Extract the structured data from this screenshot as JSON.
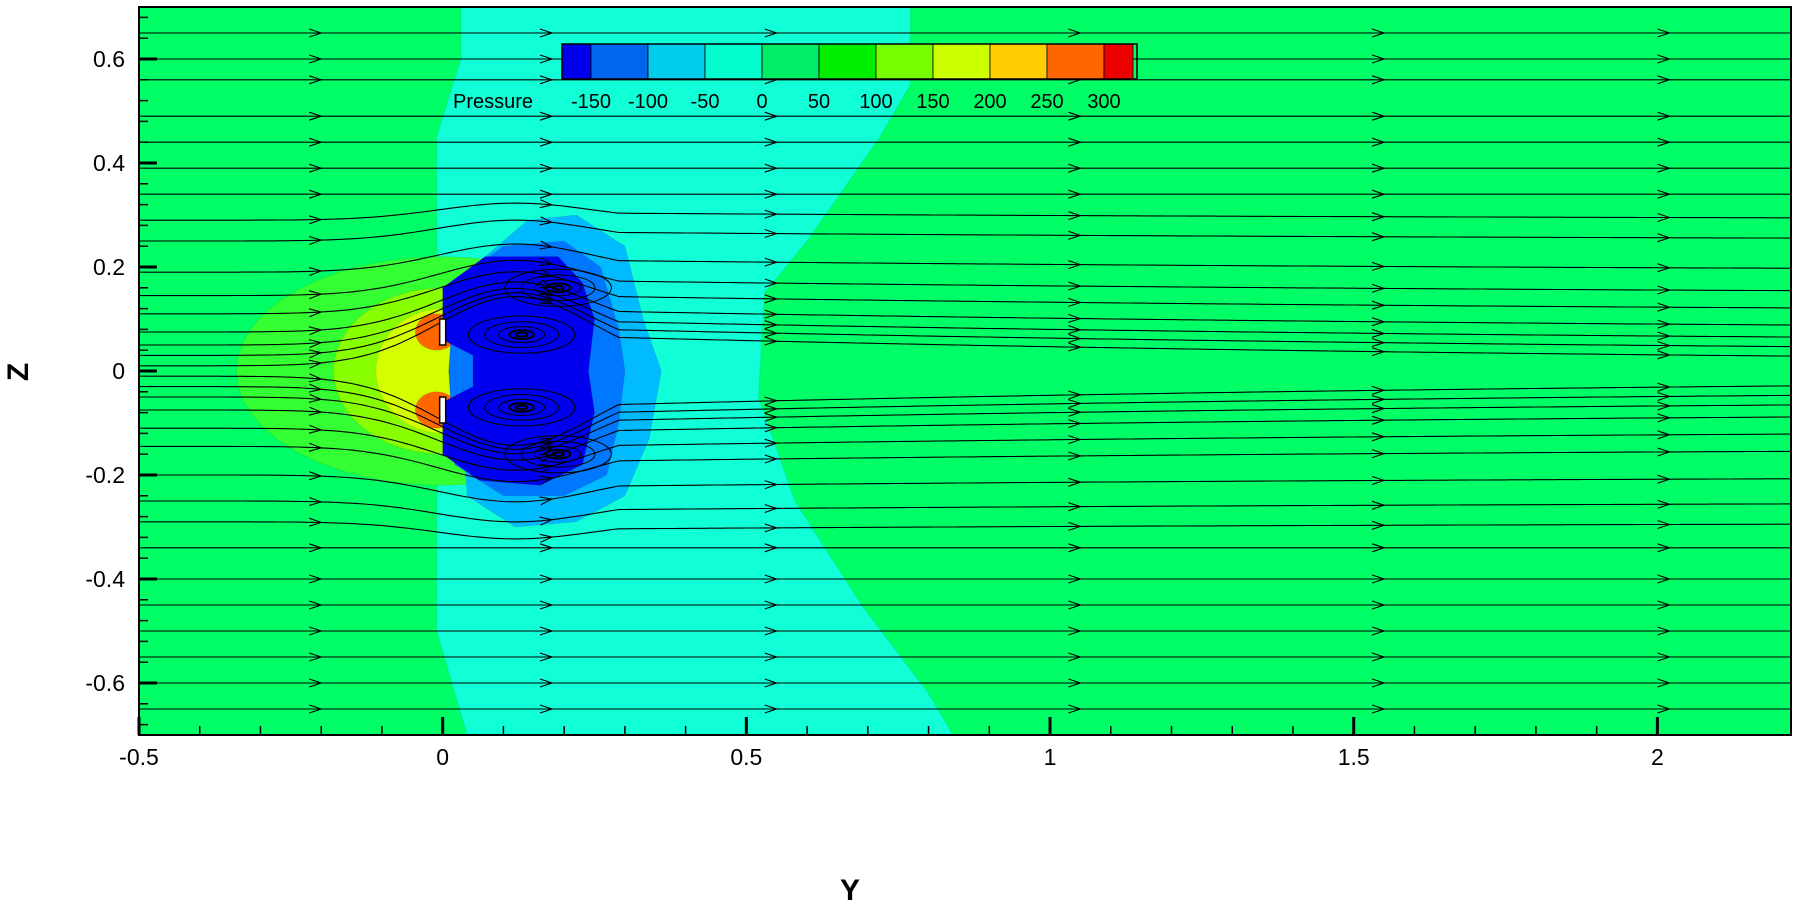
{
  "chart_data": {
    "type": "contour",
    "xlabel": "Y",
    "ylabel": "Z",
    "xlim": [
      -0.5,
      2.22
    ],
    "ylim": [
      -0.7,
      0.7
    ],
    "x_ticks": [
      -0.5,
      0,
      0.5,
      1,
      1.5,
      2
    ],
    "x_tick_labels": [
      "-0.5",
      "0",
      "0.5",
      "1",
      "1.5",
      "2"
    ],
    "y_ticks": [
      0.6,
      0.4,
      0.2,
      0,
      -0.2,
      -0.4,
      -0.6
    ],
    "y_tick_labels": [
      "0.6",
      "0.4",
      "0.2",
      "0",
      "-0.2",
      "-0.4",
      "-0.6"
    ],
    "grid": false,
    "legend": {
      "title": "Pressure",
      "placement": "top-center",
      "levels": [
        -150,
        -100,
        -50,
        0,
        50,
        100,
        150,
        200,
        250,
        300
      ],
      "level_labels": [
        "-150",
        "-100",
        "-50",
        "0",
        "50",
        "100",
        "150",
        "200",
        "250",
        "300"
      ],
      "colors": [
        "#0000ee",
        "#0066ee",
        "#00ccee",
        "#00ffcc",
        "#00ee66",
        "#00ee00",
        "#77ff00",
        "#ccff00",
        "#ffcc00",
        "#ff6600",
        "#ee0000"
      ]
    },
    "background_color": "#00ff66",
    "regions": [
      {
        "name": "wake-band",
        "level": "0 to -50",
        "color": "#11ffd6"
      },
      {
        "name": "upstream-high-outer",
        "level": "50 to 100",
        "color": "#33ff33"
      },
      {
        "name": "upstream-high-mid",
        "level": "100 to 150",
        "color": "#88ff00"
      },
      {
        "name": "upstream-high-inner",
        "level": "150 to 200",
        "color": "#d4ff00"
      },
      {
        "name": "stagnation-upper",
        "level": "250 to 300",
        "color": "#ff6600"
      },
      {
        "name": "stagnation-lower",
        "level": "250 to 300",
        "color": "#ff6600"
      },
      {
        "name": "low-pressure-outer",
        "level": "-50 to -100",
        "color": "#00bbff"
      },
      {
        "name": "low-pressure-mid",
        "level": "-100 to -150",
        "color": "#0077ff"
      },
      {
        "name": "low-pressure-core",
        "level": "< -150",
        "color": "#0000ee"
      }
    ],
    "body": {
      "name": "plate",
      "y": 0,
      "z_range": [
        -0.1,
        0.1
      ],
      "gap": [
        -0.05,
        0.05
      ]
    },
    "vortices": [
      {
        "name": "vortex-upper-outer",
        "y": 0.19,
        "z": 0.16
      },
      {
        "name": "vortex-upper-inner",
        "y": 0.13,
        "z": 0.07
      },
      {
        "name": "vortex-lower-inner",
        "y": 0.13,
        "z": -0.07
      },
      {
        "name": "vortex-lower-outer",
        "y": 0.19,
        "z": -0.16
      }
    ],
    "streamline_z0": [
      0.65,
      0.6,
      0.56,
      0.49,
      0.44,
      0.39,
      0.34,
      0.29,
      0.25,
      0.19,
      0.145,
      0.11,
      0.075,
      0.05,
      0.03,
      0.01,
      -0.01,
      -0.03,
      -0.05,
      -0.075,
      -0.11,
      -0.145,
      -0.2,
      -0.25,
      -0.29,
      -0.34,
      -0.4,
      -0.45,
      -0.5,
      -0.55,
      -0.6,
      -0.65
    ]
  }
}
